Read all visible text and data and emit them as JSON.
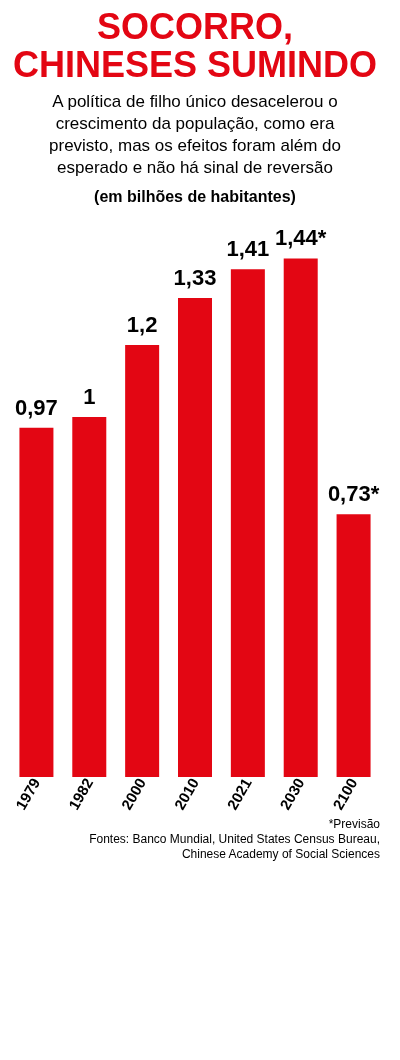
{
  "chart_data": {
    "type": "bar",
    "title": "SOCORRO,\nCHINESES SUMINDO",
    "subtitle": "A política de filho único desacelerou o crescimento da população, como era previsto, mas os efeitos foram além do esperado e não há sinal de reversão",
    "ylabel": "(em bilhões de habitantes)",
    "categories": [
      "1979",
      "1982",
      "2000",
      "2010",
      "2021",
      "2030",
      "2100"
    ],
    "values": [
      0.97,
      1,
      1.2,
      1.33,
      1.41,
      1.44,
      0.73
    ],
    "value_labels": [
      "0,97",
      "1",
      "1,2",
      "1,33",
      "1,41",
      "1,44*",
      "0,73*"
    ],
    "color": "#e30613",
    "annotations": [
      "*Previsão",
      "Fontes: Banco Mundial, United States Census Bureau, Chinese Academy of Social Sciences"
    ]
  }
}
